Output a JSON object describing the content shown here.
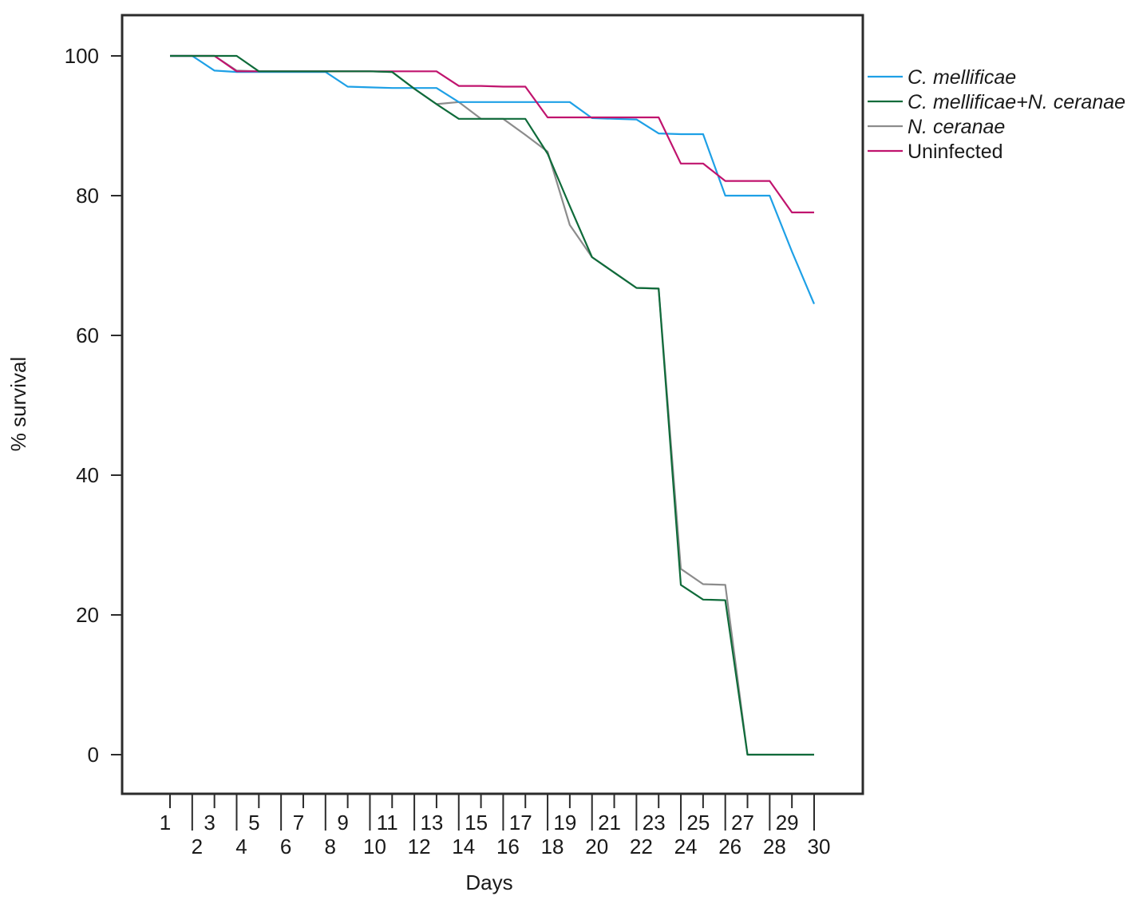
{
  "chart_data": {
    "type": "line",
    "title": "",
    "xlabel": "Days",
    "ylabel": "% survival",
    "x": [
      1,
      2,
      3,
      4,
      5,
      6,
      7,
      8,
      9,
      10,
      11,
      12,
      13,
      14,
      15,
      16,
      17,
      18,
      19,
      20,
      21,
      22,
      23,
      24,
      25,
      26,
      27,
      28,
      29,
      30
    ],
    "xlim": [
      1,
      30
    ],
    "ylim": [
      -5,
      105
    ],
    "yticks": [
      0,
      20,
      40,
      60,
      80,
      100
    ],
    "xticks": [
      "1",
      "2",
      "3",
      "4",
      "5",
      "6",
      "7",
      "8",
      "9",
      "10",
      "11",
      "12",
      "13",
      "14",
      "15",
      "16",
      "17",
      "18",
      "19",
      "20",
      "21",
      "22",
      "23",
      "24",
      "25",
      "26",
      "27",
      "28",
      "29",
      "30"
    ],
    "grid": false,
    "legend_position": "right-top",
    "series": [
      {
        "name": "C. mellificae",
        "italic": true,
        "color": "#1ea0e6",
        "values": [
          100,
          100,
          97.9,
          97.7,
          97.7,
          97.7,
          97.7,
          97.7,
          95.6,
          95.5,
          95.4,
          95.4,
          95.4,
          93.4,
          93.4,
          93.4,
          93.4,
          93.4,
          93.4,
          91.1,
          91.0,
          90.9,
          88.9,
          88.8,
          88.8,
          80.0,
          80.0,
          80.0,
          72.0,
          64.5
        ]
      },
      {
        "name": "C. mellificae+N. ceranae",
        "italic": true,
        "color": "#0f6b3a",
        "values": [
          100,
          100,
          100,
          100,
          97.8,
          97.8,
          97.8,
          97.8,
          97.8,
          97.8,
          97.7,
          95.3,
          93.1,
          91.0,
          91.0,
          91.0,
          91.0,
          86.0,
          78.5,
          71.2,
          69.0,
          66.8,
          66.7,
          24.3,
          22.2,
          22.1,
          0,
          0,
          0,
          0
        ]
      },
      {
        "name": "N. ceranae",
        "italic": true,
        "color": "#8c8c8c",
        "values": [
          100,
          100,
          100,
          97.9,
          97.8,
          97.8,
          97.8,
          97.8,
          97.8,
          97.8,
          97.7,
          95.3,
          93.1,
          93.4,
          91.0,
          91.0,
          88.7,
          86.3,
          75.8,
          71.2,
          69.0,
          66.8,
          66.7,
          26.6,
          24.4,
          24.3,
          0,
          0,
          0,
          0
        ]
      },
      {
        "name": "Uninfected",
        "italic": false,
        "color": "#c0146e",
        "values": [
          100,
          100,
          100,
          97.8,
          97.8,
          97.8,
          97.8,
          97.8,
          97.8,
          97.8,
          97.8,
          97.8,
          97.8,
          95.7,
          95.7,
          95.6,
          95.6,
          91.2,
          91.2,
          91.2,
          91.2,
          91.2,
          91.2,
          84.6,
          84.6,
          82.1,
          82.1,
          82.1,
          77.6,
          77.6
        ]
      }
    ]
  }
}
